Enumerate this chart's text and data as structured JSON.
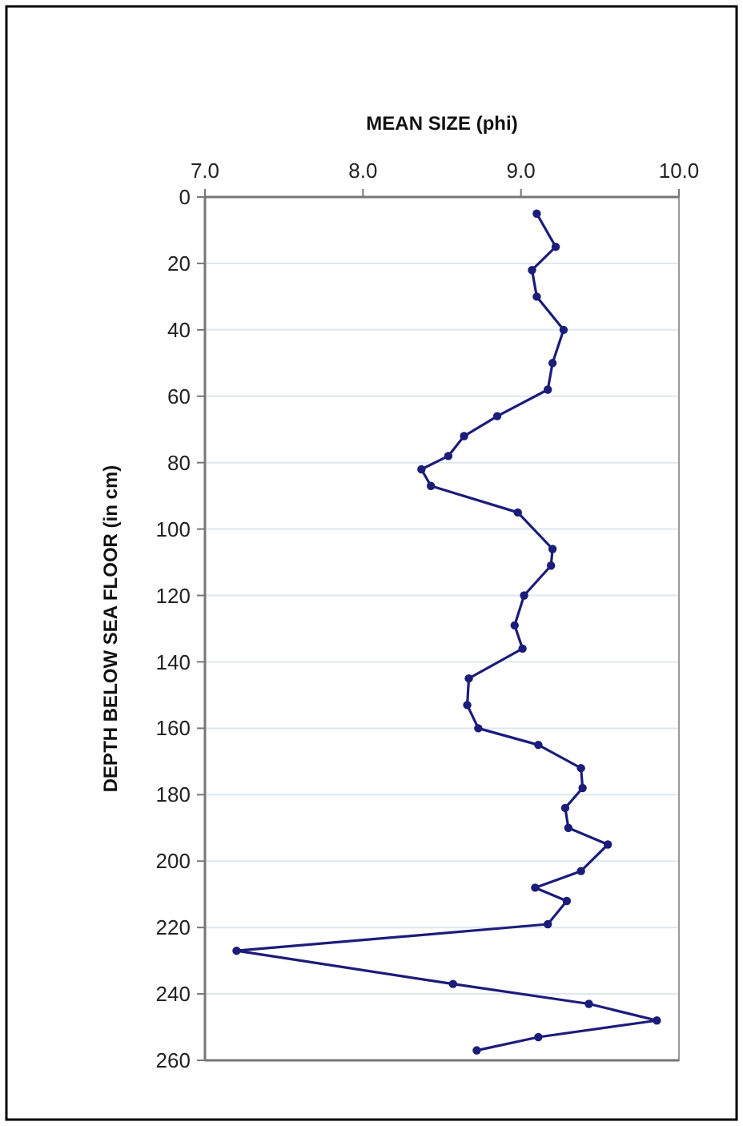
{
  "chart_data": {
    "type": "line",
    "xlabel": "MEAN SIZE (phi)",
    "ylabel": "DEPTH BELOW SEA FLOOR (in cm)",
    "xlim": [
      7,
      10
    ],
    "xticks": [
      {
        "value": 7,
        "label": "7.0"
      },
      {
        "value": 8,
        "label": "8.0"
      },
      {
        "value": 9,
        "label": "9.0"
      },
      {
        "value": 10,
        "label": "10.0"
      }
    ],
    "ylim": [
      260,
      0
    ],
    "yticks": [
      0,
      20,
      40,
      60,
      80,
      100,
      120,
      140,
      160,
      180,
      200,
      220,
      240,
      260
    ],
    "grid": "y",
    "marker": "circle",
    "line_style": "solid",
    "series": [
      {
        "color": "#1c1c7a",
        "x": [
          9.1,
          9.22,
          9.07,
          9.1,
          9.27,
          9.2,
          9.17,
          8.85,
          8.64,
          8.54,
          8.37,
          8.43,
          8.98,
          9.2,
          9.19,
          9.02,
          8.96,
          9.01,
          8.67,
          8.66,
          8.73,
          9.11,
          9.38,
          9.39,
          9.28,
          9.3,
          9.55,
          9.38,
          9.09,
          9.29,
          9.17,
          7.2,
          8.57,
          9.43,
          9.86,
          9.11,
          8.72
        ],
        "values": [
          5,
          15,
          22,
          30,
          40,
          50,
          58,
          66,
          72,
          78,
          82,
          87,
          95,
          106,
          111,
          120,
          129,
          136,
          145,
          153,
          160,
          165,
          172,
          178,
          184,
          190,
          195,
          203,
          208,
          212,
          219,
          227,
          237,
          243,
          248,
          253,
          257
        ]
      }
    ]
  }
}
